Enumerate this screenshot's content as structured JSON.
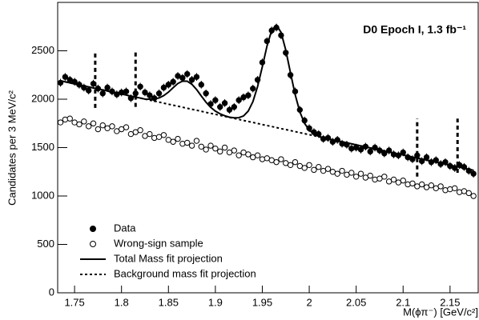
{
  "chart_data": {
    "type": "scatter",
    "annotation": "D0 Epoch I, 1.3 fb⁻¹",
    "x_label": "M(ϕπ⁻) [GeV/c²]",
    "y_label": "Candidates per 3 MeV/c²",
    "xlim": [
      1.732,
      2.18
    ],
    "ylim": [
      0,
      3000
    ],
    "xticks": [
      1.75,
      1.8,
      1.85,
      1.9,
      1.95,
      2,
      2.05,
      2.1,
      2.15
    ],
    "yticks": [
      0,
      500,
      1000,
      1500,
      2000,
      2500
    ],
    "legend": "lower left",
    "x": [
      1.735,
      1.74,
      1.745,
      1.75,
      1.755,
      1.76,
      1.765,
      1.77,
      1.775,
      1.78,
      1.785,
      1.79,
      1.795,
      1.8,
      1.805,
      1.81,
      1.815,
      1.82,
      1.825,
      1.83,
      1.835,
      1.84,
      1.845,
      1.85,
      1.855,
      1.86,
      1.865,
      1.87,
      1.875,
      1.88,
      1.885,
      1.89,
      1.895,
      1.9,
      1.905,
      1.91,
      1.915,
      1.92,
      1.925,
      1.93,
      1.935,
      1.94,
      1.945,
      1.95,
      1.955,
      1.96,
      1.965,
      1.97,
      1.975,
      1.98,
      1.985,
      1.99,
      1.995,
      2,
      2.005,
      2.01,
      2.015,
      2.02,
      2.025,
      2.03,
      2.035,
      2.04,
      2.045,
      2.05,
      2.055,
      2.06,
      2.065,
      2.07,
      2.075,
      2.08,
      2.085,
      2.09,
      2.095,
      2.1,
      2.105,
      2.11,
      2.115,
      2.12,
      2.125,
      2.13,
      2.135,
      2.14,
      2.145,
      2.15,
      2.155,
      2.16,
      2.165,
      2.17,
      2.175
    ],
    "series": [
      {
        "name": "Data",
        "style": "filled",
        "color": "#000000",
        "yerr": 40,
        "values": [
          2170,
          2230,
          2200,
          2180,
          2150,
          2120,
          2090,
          2160,
          2110,
          2060,
          2120,
          2080,
          2050,
          2070,
          2080,
          2010,
          2060,
          2130,
          2070,
          2040,
          2010,
          2060,
          2120,
          2150,
          2180,
          2240,
          2220,
          2260,
          2200,
          2230,
          2150,
          2060,
          1950,
          1990,
          1920,
          1960,
          1890,
          1920,
          1990,
          2020,
          2040,
          2110,
          2200,
          2380,
          2600,
          2710,
          2740,
          2660,
          2480,
          2250,
          2080,
          1890,
          1780,
          1700,
          1660,
          1640,
          1590,
          1600,
          1560,
          1580,
          1540,
          1530,
          1490,
          1500,
          1480,
          1510,
          1460,
          1500,
          1470,
          1440,
          1470,
          1430,
          1420,
          1450,
          1400,
          1380,
          1420,
          1360,
          1400,
          1350,
          1370,
          1330,
          1350,
          1310,
          1290,
          1320,
          1300,
          1260,
          1230
        ]
      },
      {
        "name": "Wrong-sign sample",
        "style": "open",
        "color": "#000000",
        "values": [
          1760,
          1790,
          1800,
          1760,
          1740,
          1770,
          1720,
          1750,
          1690,
          1730,
          1700,
          1720,
          1670,
          1690,
          1710,
          1640,
          1660,
          1680,
          1620,
          1640,
          1600,
          1610,
          1630,
          1580,
          1560,
          1590,
          1540,
          1550,
          1520,
          1570,
          1510,
          1480,
          1520,
          1490,
          1460,
          1500,
          1450,
          1470,
          1420,
          1450,
          1430,
          1400,
          1420,
          1380,
          1390,
          1370,
          1350,
          1380,
          1340,
          1320,
          1350,
          1310,
          1290,
          1320,
          1270,
          1300,
          1260,
          1280,
          1250,
          1230,
          1260,
          1220,
          1240,
          1200,
          1230,
          1190,
          1210,
          1170,
          1180,
          1200,
          1150,
          1170,
          1140,
          1160,
          1120,
          1130,
          1100,
          1120,
          1090,
          1110,
          1080,
          1100,
          1060,
          1070,
          1080,
          1040,
          1050,
          1030,
          1000
        ]
      },
      {
        "name": "Total Mass fit projection",
        "style": "solid",
        "color": "#000000",
        "values": [
          2190,
          2180,
          2169,
          2158,
          2148,
          2138,
          2127,
          2116,
          2106,
          2096,
          2085,
          2074,
          2064,
          2054,
          2043,
          2032,
          2022,
          2012,
          2001,
          2000,
          2002,
          2013,
          2037,
          2073,
          2119,
          2162,
          2187,
          2186,
          2154,
          2100,
          2033,
          1969,
          1916,
          1877,
          1849,
          1829,
          1814,
          1808,
          1809,
          1827,
          1877,
          1975,
          2131,
          2335,
          2549,
          2712,
          2767,
          2690,
          2507,
          2273,
          2047,
          1869,
          1751,
          1681,
          1641,
          1618,
          1602,
          1592,
          1581,
          1570,
          1560,
          1550,
          1539,
          1528,
          1518,
          1508,
          1497,
          1486,
          1476,
          1466,
          1455,
          1444,
          1434,
          1424,
          1413,
          1402,
          1392,
          1382,
          1371,
          1360,
          1350,
          1340,
          1329,
          1318,
          1308,
          1298,
          1287,
          1276,
          1266
        ]
      },
      {
        "name": "Background mass fit projection",
        "style": "dashed",
        "color": "#000000",
        "values": [
          2190,
          2180,
          2169,
          2158,
          2148,
          2138,
          2127,
          2116,
          2106,
          2096,
          2085,
          2074,
          2064,
          2054,
          2043,
          2032,
          2022,
          2012,
          2001,
          1990,
          1980,
          1970,
          1959,
          1948,
          1938,
          1928,
          1917,
          1906,
          1896,
          1886,
          1875,
          1864,
          1854,
          1844,
          1833,
          1822,
          1812,
          1802,
          1791,
          1780,
          1770,
          1760,
          1749,
          1738,
          1728,
          1718,
          1707,
          1696,
          1686,
          1676,
          1665,
          1654,
          1644,
          1634,
          1623,
          1612,
          1602,
          1592,
          1581,
          1570,
          1560,
          1550,
          1539,
          1528,
          1518,
          1508,
          1497,
          1486,
          1476,
          1466,
          1455,
          1444,
          1434,
          1424,
          1413,
          1402,
          1392,
          1382,
          1371,
          1360,
          1350,
          1340,
          1329,
          1318,
          1308,
          1298,
          1287,
          1276,
          1266
        ]
      }
    ],
    "markers": [
      {
        "x": 1.772,
        "y": [
          1910,
          2500
        ]
      },
      {
        "x": 1.815,
        "y": [
          1920,
          2500
        ]
      },
      {
        "x": 2.115,
        "y": [
          1200,
          1800
        ]
      },
      {
        "x": 2.158,
        "y": [
          1240,
          1800
        ]
      }
    ]
  }
}
